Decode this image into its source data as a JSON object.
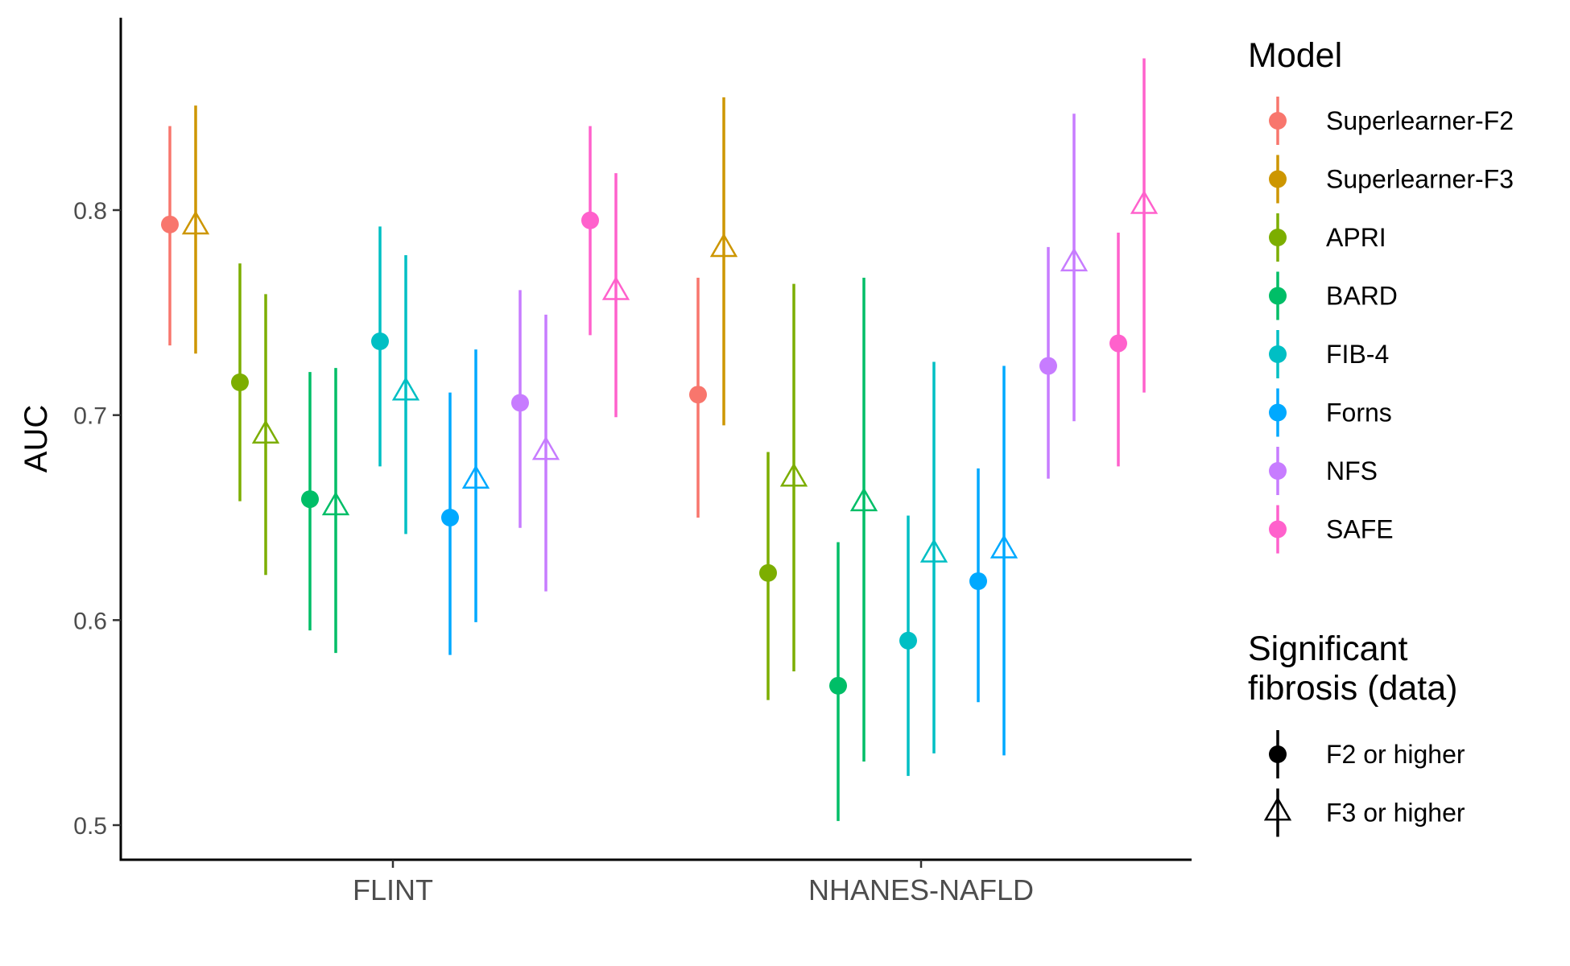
{
  "chart_data": {
    "type": "scatter",
    "subtype": "pointrange",
    "ylabel": "AUC",
    "xlabel": "",
    "ylim": [
      0.5,
      0.88
    ],
    "y_ticks": [
      0.5,
      0.6,
      0.7,
      0.8
    ],
    "y_tick_labels": [
      "0.5",
      "0.6",
      "0.7",
      "0.8"
    ],
    "categories": [
      "FLINT",
      "NHANES-NAFLD"
    ],
    "grid": false,
    "legend_position": "right",
    "legend_color": {
      "title": "Model",
      "entries": [
        {
          "name": "Superlearner-F2",
          "color": "#F8766D"
        },
        {
          "name": "Superlearner-F3",
          "color": "#CD9600"
        },
        {
          "name": "APRI",
          "color": "#7CAE00"
        },
        {
          "name": "BARD",
          "color": "#00BE67"
        },
        {
          "name": "FIB-4",
          "color": "#00BFC4"
        },
        {
          "name": "Forns",
          "color": "#00A9FF"
        },
        {
          "name": "NFS",
          "color": "#C77CFF"
        },
        {
          "name": "SAFE",
          "color": "#FF61CC"
        }
      ]
    },
    "legend_shape": {
      "title_lines": [
        "Significant",
        "fibrosis (data)"
      ],
      "entries": [
        {
          "name": "F2 or higher",
          "shape": "circle"
        },
        {
          "name": "F3 or higher",
          "shape": "open-triangle"
        }
      ]
    },
    "series": [
      {
        "model": "Superlearner-F2",
        "outcome": "F2 or higher",
        "values": [
          {
            "category": "FLINT",
            "auc": 0.793,
            "lower": 0.734,
            "upper": 0.841
          },
          {
            "category": "NHANES-NAFLD",
            "auc": 0.71,
            "lower": 0.65,
            "upper": 0.767
          }
        ]
      },
      {
        "model": "Superlearner-F3",
        "outcome": "F3 or higher",
        "values": [
          {
            "category": "FLINT",
            "auc": 0.792,
            "lower": 0.73,
            "upper": 0.851
          },
          {
            "category": "NHANES-NAFLD",
            "auc": 0.781,
            "lower": 0.695,
            "upper": 0.855
          }
        ]
      },
      {
        "model": "APRI",
        "outcome": "F2 or higher",
        "values": [
          {
            "category": "FLINT",
            "auc": 0.716,
            "lower": 0.658,
            "upper": 0.774
          },
          {
            "category": "NHANES-NAFLD",
            "auc": 0.623,
            "lower": 0.561,
            "upper": 0.682
          }
        ]
      },
      {
        "model": "APRI",
        "outcome": "F3 or higher",
        "values": [
          {
            "category": "FLINT",
            "auc": 0.69,
            "lower": 0.622,
            "upper": 0.759
          },
          {
            "category": "NHANES-NAFLD",
            "auc": 0.669,
            "lower": 0.575,
            "upper": 0.764
          }
        ]
      },
      {
        "model": "BARD",
        "outcome": "F2 or higher",
        "values": [
          {
            "category": "FLINT",
            "auc": 0.659,
            "lower": 0.595,
            "upper": 0.721
          },
          {
            "category": "NHANES-NAFLD",
            "auc": 0.568,
            "lower": 0.502,
            "upper": 0.638
          }
        ]
      },
      {
        "model": "BARD",
        "outcome": "F3 or higher",
        "values": [
          {
            "category": "FLINT",
            "auc": 0.655,
            "lower": 0.584,
            "upper": 0.723
          },
          {
            "category": "NHANES-NAFLD",
            "auc": 0.657,
            "lower": 0.531,
            "upper": 0.767
          }
        ]
      },
      {
        "model": "FIB-4",
        "outcome": "F2 or higher",
        "values": [
          {
            "category": "FLINT",
            "auc": 0.736,
            "lower": 0.675,
            "upper": 0.792
          },
          {
            "category": "NHANES-NAFLD",
            "auc": 0.59,
            "lower": 0.524,
            "upper": 0.651
          }
        ]
      },
      {
        "model": "FIB-4",
        "outcome": "F3 or higher",
        "values": [
          {
            "category": "FLINT",
            "auc": 0.711,
            "lower": 0.642,
            "upper": 0.778
          },
          {
            "category": "NHANES-NAFLD",
            "auc": 0.632,
            "lower": 0.535,
            "upper": 0.726
          }
        ]
      },
      {
        "model": "Forns",
        "outcome": "F2 or higher",
        "values": [
          {
            "category": "FLINT",
            "auc": 0.65,
            "lower": 0.583,
            "upper": 0.711
          },
          {
            "category": "NHANES-NAFLD",
            "auc": 0.619,
            "lower": 0.56,
            "upper": 0.674
          }
        ]
      },
      {
        "model": "Forns",
        "outcome": "F3 or higher",
        "values": [
          {
            "category": "FLINT",
            "auc": 0.668,
            "lower": 0.599,
            "upper": 0.732
          },
          {
            "category": "NHANES-NAFLD",
            "auc": 0.634,
            "lower": 0.534,
            "upper": 0.724
          }
        ]
      },
      {
        "model": "NFS",
        "outcome": "F2 or higher",
        "values": [
          {
            "category": "FLINT",
            "auc": 0.706,
            "lower": 0.645,
            "upper": 0.761
          },
          {
            "category": "NHANES-NAFLD",
            "auc": 0.724,
            "lower": 0.669,
            "upper": 0.782
          }
        ]
      },
      {
        "model": "NFS",
        "outcome": "F3 or higher",
        "values": [
          {
            "category": "FLINT",
            "auc": 0.682,
            "lower": 0.614,
            "upper": 0.749
          },
          {
            "category": "NHANES-NAFLD",
            "auc": 0.774,
            "lower": 0.697,
            "upper": 0.847
          }
        ]
      },
      {
        "model": "SAFE",
        "outcome": "F2 or higher",
        "values": [
          {
            "category": "FLINT",
            "auc": 0.795,
            "lower": 0.739,
            "upper": 0.841
          },
          {
            "category": "NHANES-NAFLD",
            "auc": 0.735,
            "lower": 0.675,
            "upper": 0.789
          }
        ]
      },
      {
        "model": "SAFE",
        "outcome": "F3 or higher",
        "values": [
          {
            "category": "FLINT",
            "auc": 0.76,
            "lower": 0.699,
            "upper": 0.818
          },
          {
            "category": "NHANES-NAFLD",
            "auc": 0.802,
            "lower": 0.711,
            "upper": 0.874
          }
        ]
      }
    ]
  }
}
